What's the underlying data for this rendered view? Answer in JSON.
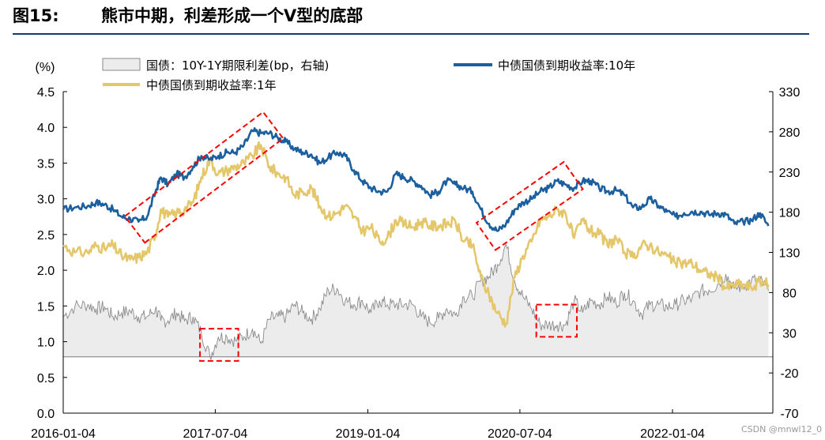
{
  "figure": {
    "label": "图15:",
    "title": "熊市中期，利差形成一个V型的底部"
  },
  "watermark": "CSDN @mnwl12_0",
  "colors": {
    "ten_year": "#1b5f9e",
    "one_year": "#e5c76b",
    "spread_fill": "#ececec",
    "spread_line": "#8a8a8a",
    "highlight": "#ff0000",
    "title_rule": "#1a3a6b"
  },
  "chart_data": {
    "type": "line",
    "y_left": {
      "label": "(%)",
      "range": [
        0,
        4.5
      ],
      "ticks": [
        "0.0",
        "0.5",
        "1.0",
        "1.5",
        "2.0",
        "2.5",
        "3.0",
        "3.5",
        "4.0",
        "4.5"
      ]
    },
    "y_right": {
      "label": "",
      "range": [
        -70,
        330
      ],
      "ticks": [
        "-70",
        "-20",
        "30",
        "80",
        "130",
        "180",
        "230",
        "280",
        "330"
      ]
    },
    "x": {
      "range": [
        "2016-01-04",
        "2022-12-31"
      ],
      "ticks": [
        "2016-01-04",
        "2017-07-04",
        "2019-01-04",
        "2020-07-04",
        "2022-01-04"
      ]
    },
    "legend": {
      "placement": "top",
      "items": [
        {
          "name": "国债：10Y-1Y期限利差(bp，右轴)",
          "type": "area"
        },
        {
          "name": "中债国债到期收益率:10年",
          "type": "line"
        },
        {
          "name": "中债国债到期收益率:1年",
          "type": "line"
        }
      ]
    },
    "series": [
      {
        "name": "中债国债到期收益率:10年",
        "axis": "left",
        "points": [
          [
            "2016-01-04",
            2.85
          ],
          [
            "2016-02-15",
            2.88
          ],
          [
            "2016-04-01",
            2.9
          ],
          [
            "2016-05-01",
            2.95
          ],
          [
            "2016-06-01",
            2.92
          ],
          [
            "2016-07-01",
            2.85
          ],
          [
            "2016-08-01",
            2.75
          ],
          [
            "2016-09-01",
            2.72
          ],
          [
            "2016-10-01",
            2.68
          ],
          [
            "2016-11-01",
            2.75
          ],
          [
            "2016-12-01",
            3.1
          ],
          [
            "2016-12-20",
            3.3
          ],
          [
            "2017-01-15",
            3.2
          ],
          [
            "2017-02-15",
            3.35
          ],
          [
            "2017-03-15",
            3.3
          ],
          [
            "2017-04-15",
            3.45
          ],
          [
            "2017-05-15",
            3.6
          ],
          [
            "2017-06-15",
            3.55
          ],
          [
            "2017-07-15",
            3.6
          ],
          [
            "2017-08-15",
            3.65
          ],
          [
            "2017-09-15",
            3.65
          ],
          [
            "2017-10-15",
            3.75
          ],
          [
            "2017-11-15",
            3.95
          ],
          [
            "2017-12-15",
            3.92
          ],
          [
            "2018-01-15",
            3.92
          ],
          [
            "2018-02-15",
            3.85
          ],
          [
            "2018-03-15",
            3.8
          ],
          [
            "2018-04-15",
            3.7
          ],
          [
            "2018-05-15",
            3.65
          ],
          [
            "2018-06-15",
            3.62
          ],
          [
            "2018-07-15",
            3.5
          ],
          [
            "2018-08-15",
            3.58
          ],
          [
            "2018-09-15",
            3.65
          ],
          [
            "2018-10-15",
            3.6
          ],
          [
            "2018-11-15",
            3.4
          ],
          [
            "2018-12-15",
            3.25
          ],
          [
            "2019-01-15",
            3.15
          ],
          [
            "2019-02-15",
            3.1
          ],
          [
            "2019-03-15",
            3.1
          ],
          [
            "2019-04-15",
            3.35
          ],
          [
            "2019-05-15",
            3.3
          ],
          [
            "2019-06-15",
            3.25
          ],
          [
            "2019-07-15",
            3.18
          ],
          [
            "2019-08-15",
            3.05
          ],
          [
            "2019-09-15",
            3.1
          ],
          [
            "2019-10-15",
            3.25
          ],
          [
            "2019-11-15",
            3.2
          ],
          [
            "2019-12-15",
            3.15
          ],
          [
            "2020-01-15",
            3.1
          ],
          [
            "2020-02-15",
            2.85
          ],
          [
            "2020-03-15",
            2.65
          ],
          [
            "2020-04-15",
            2.55
          ],
          [
            "2020-05-15",
            2.65
          ],
          [
            "2020-06-15",
            2.85
          ],
          [
            "2020-07-15",
            2.95
          ],
          [
            "2020-08-15",
            3.0
          ],
          [
            "2020-09-15",
            3.1
          ],
          [
            "2020-10-15",
            3.15
          ],
          [
            "2020-11-15",
            3.25
          ],
          [
            "2020-12-15",
            3.2
          ],
          [
            "2021-01-15",
            3.15
          ],
          [
            "2021-02-15",
            3.25
          ],
          [
            "2021-03-15",
            3.25
          ],
          [
            "2021-04-15",
            3.15
          ],
          [
            "2021-05-15",
            3.1
          ],
          [
            "2021-06-15",
            3.12
          ],
          [
            "2021-07-15",
            3.05
          ],
          [
            "2021-08-15",
            2.88
          ],
          [
            "2021-09-15",
            2.88
          ],
          [
            "2021-10-15",
            3.0
          ],
          [
            "2021-11-15",
            2.9
          ],
          [
            "2021-12-15",
            2.82
          ],
          [
            "2022-01-15",
            2.75
          ],
          [
            "2022-02-15",
            2.8
          ],
          [
            "2022-03-15",
            2.82
          ],
          [
            "2022-04-15",
            2.82
          ],
          [
            "2022-05-15",
            2.78
          ],
          [
            "2022-06-15",
            2.8
          ],
          [
            "2022-07-15",
            2.78
          ],
          [
            "2022-08-15",
            2.65
          ],
          [
            "2022-09-15",
            2.68
          ],
          [
            "2022-10-15",
            2.7
          ],
          [
            "2022-11-15",
            2.8
          ],
          [
            "2022-12-15",
            2.62
          ]
        ]
      },
      {
        "name": "中债国债到期收益率:1年",
        "axis": "left",
        "points": [
          [
            "2016-01-04",
            2.35
          ],
          [
            "2016-02-15",
            2.25
          ],
          [
            "2016-04-01",
            2.25
          ],
          [
            "2016-05-01",
            2.35
          ],
          [
            "2016-06-01",
            2.3
          ],
          [
            "2016-07-01",
            2.35
          ],
          [
            "2016-08-01",
            2.2
          ],
          [
            "2016-09-01",
            2.15
          ],
          [
            "2016-10-01",
            2.18
          ],
          [
            "2016-11-01",
            2.25
          ],
          [
            "2016-12-01",
            2.5
          ],
          [
            "2016-12-20",
            2.85
          ],
          [
            "2017-01-15",
            2.75
          ],
          [
            "2017-02-15",
            2.8
          ],
          [
            "2017-03-15",
            2.85
          ],
          [
            "2017-04-15",
            2.95
          ],
          [
            "2017-05-15",
            3.3
          ],
          [
            "2017-06-15",
            3.55
          ],
          [
            "2017-07-15",
            3.35
          ],
          [
            "2017-08-15",
            3.4
          ],
          [
            "2017-09-15",
            3.45
          ],
          [
            "2017-10-15",
            3.5
          ],
          [
            "2017-11-15",
            3.6
          ],
          [
            "2017-12-15",
            3.75
          ],
          [
            "2018-01-15",
            3.45
          ],
          [
            "2018-02-15",
            3.35
          ],
          [
            "2018-03-15",
            3.3
          ],
          [
            "2018-04-15",
            3.05
          ],
          [
            "2018-05-15",
            3.1
          ],
          [
            "2018-06-15",
            3.15
          ],
          [
            "2018-07-15",
            2.9
          ],
          [
            "2018-08-15",
            2.75
          ],
          [
            "2018-09-15",
            2.8
          ],
          [
            "2018-10-15",
            2.9
          ],
          [
            "2018-11-15",
            2.75
          ],
          [
            "2018-12-15",
            2.55
          ],
          [
            "2019-01-15",
            2.6
          ],
          [
            "2019-02-15",
            2.4
          ],
          [
            "2019-03-15",
            2.45
          ],
          [
            "2019-04-15",
            2.7
          ],
          [
            "2019-05-15",
            2.65
          ],
          [
            "2019-06-15",
            2.6
          ],
          [
            "2019-07-15",
            2.68
          ],
          [
            "2019-08-15",
            2.62
          ],
          [
            "2019-09-15",
            2.62
          ],
          [
            "2019-10-15",
            2.65
          ],
          [
            "2019-11-15",
            2.68
          ],
          [
            "2019-12-15",
            2.4
          ],
          [
            "2020-01-15",
            2.35
          ],
          [
            "2020-02-15",
            1.9
          ],
          [
            "2020-03-15",
            1.65
          ],
          [
            "2020-04-15",
            1.4
          ],
          [
            "2020-05-15",
            1.25
          ],
          [
            "2020-06-15",
            1.9
          ],
          [
            "2020-07-15",
            2.2
          ],
          [
            "2020-08-15",
            2.4
          ],
          [
            "2020-09-15",
            2.7
          ],
          [
            "2020-10-15",
            2.75
          ],
          [
            "2020-11-15",
            2.85
          ],
          [
            "2020-12-15",
            2.8
          ],
          [
            "2021-01-15",
            2.45
          ],
          [
            "2021-02-15",
            2.7
          ],
          [
            "2021-03-15",
            2.55
          ],
          [
            "2021-04-15",
            2.5
          ],
          [
            "2021-05-15",
            2.35
          ],
          [
            "2021-06-15",
            2.45
          ],
          [
            "2021-07-15",
            2.25
          ],
          [
            "2021-08-15",
            2.18
          ],
          [
            "2021-09-15",
            2.35
          ],
          [
            "2021-10-15",
            2.35
          ],
          [
            "2021-11-15",
            2.25
          ],
          [
            "2021-12-15",
            2.2
          ],
          [
            "2022-01-15",
            2.1
          ],
          [
            "2022-02-15",
            2.1
          ],
          [
            "2022-03-15",
            2.1
          ],
          [
            "2022-04-15",
            2.0
          ],
          [
            "2022-05-15",
            1.95
          ],
          [
            "2022-06-15",
            1.9
          ],
          [
            "2022-07-15",
            1.75
          ],
          [
            "2022-08-15",
            1.8
          ],
          [
            "2022-09-15",
            1.8
          ],
          [
            "2022-10-15",
            1.75
          ],
          [
            "2022-11-15",
            1.85
          ],
          [
            "2022-12-15",
            1.8
          ]
        ]
      },
      {
        "name": "国债：10Y-1Y期限利差(bp，右轴)",
        "axis": "right",
        "points": [
          [
            "2016-01-04",
            50
          ],
          [
            "2016-02-15",
            63
          ],
          [
            "2016-04-01",
            65
          ],
          [
            "2016-05-01",
            60
          ],
          [
            "2016-06-01",
            62
          ],
          [
            "2016-07-01",
            50
          ],
          [
            "2016-08-01",
            55
          ],
          [
            "2016-09-01",
            57
          ],
          [
            "2016-10-01",
            50
          ],
          [
            "2016-11-01",
            50
          ],
          [
            "2016-12-01",
            60
          ],
          [
            "2016-12-20",
            45
          ],
          [
            "2017-01-15",
            45
          ],
          [
            "2017-02-15",
            55
          ],
          [
            "2017-03-15",
            45
          ],
          [
            "2017-04-15",
            50
          ],
          [
            "2017-05-15",
            30
          ],
          [
            "2017-06-15",
            0
          ],
          [
            "2017-07-15",
            25
          ],
          [
            "2017-08-15",
            25
          ],
          [
            "2017-09-15",
            20
          ],
          [
            "2017-10-15",
            25
          ],
          [
            "2017-11-15",
            35
          ],
          [
            "2017-12-15",
            17
          ],
          [
            "2018-01-15",
            47
          ],
          [
            "2018-02-15",
            50
          ],
          [
            "2018-03-15",
            50
          ],
          [
            "2018-04-15",
            65
          ],
          [
            "2018-05-15",
            55
          ],
          [
            "2018-06-15",
            47
          ],
          [
            "2018-07-15",
            60
          ],
          [
            "2018-08-15",
            83
          ],
          [
            "2018-09-15",
            85
          ],
          [
            "2018-10-15",
            70
          ],
          [
            "2018-11-15",
            65
          ],
          [
            "2018-12-15",
            70
          ],
          [
            "2019-01-15",
            55
          ],
          [
            "2019-02-15",
            70
          ],
          [
            "2019-03-15",
            65
          ],
          [
            "2019-04-15",
            65
          ],
          [
            "2019-05-15",
            65
          ],
          [
            "2019-06-15",
            65
          ],
          [
            "2019-07-15",
            50
          ],
          [
            "2019-08-15",
            43
          ],
          [
            "2019-09-15",
            48
          ],
          [
            "2019-10-15",
            60
          ],
          [
            "2019-11-15",
            52
          ],
          [
            "2019-12-15",
            75
          ],
          [
            "2020-01-15",
            75
          ],
          [
            "2020-02-15",
            95
          ],
          [
            "2020-03-15",
            100
          ],
          [
            "2020-04-15",
            115
          ],
          [
            "2020-05-15",
            140
          ],
          [
            "2020-06-15",
            95
          ],
          [
            "2020-07-15",
            75
          ],
          [
            "2020-08-15",
            60
          ],
          [
            "2020-09-15",
            40
          ],
          [
            "2020-10-15",
            40
          ],
          [
            "2020-11-15",
            40
          ],
          [
            "2020-12-15",
            40
          ],
          [
            "2021-01-15",
            70
          ],
          [
            "2021-02-15",
            55
          ],
          [
            "2021-03-15",
            70
          ],
          [
            "2021-04-15",
            65
          ],
          [
            "2021-05-15",
            75
          ],
          [
            "2021-06-15",
            67
          ],
          [
            "2021-07-15",
            80
          ],
          [
            "2021-08-15",
            70
          ],
          [
            "2021-09-15",
            53
          ],
          [
            "2021-10-15",
            65
          ],
          [
            "2021-11-15",
            65
          ],
          [
            "2021-12-15",
            62
          ],
          [
            "2022-01-15",
            65
          ],
          [
            "2022-02-15",
            70
          ],
          [
            "2022-03-15",
            72
          ],
          [
            "2022-04-15",
            82
          ],
          [
            "2022-05-15",
            83
          ],
          [
            "2022-06-15",
            90
          ],
          [
            "2022-07-15",
            103
          ],
          [
            "2022-08-15",
            85
          ],
          [
            "2022-09-15",
            88
          ],
          [
            "2022-10-15",
            95
          ],
          [
            "2022-11-15",
            95
          ],
          [
            "2022-12-15",
            82
          ]
        ]
      }
    ],
    "annotations": [
      {
        "type": "rotated-dashed-box",
        "from": [
          "2016-10-15",
          2.65
        ],
        "to": [
          "2018-01-01",
          3.95
        ]
      },
      {
        "type": "rotated-dashed-box",
        "from": [
          "2020-04-01",
          2.55
        ],
        "to": [
          "2020-12-15",
          3.25
        ]
      },
      {
        "type": "dashed-box",
        "x": [
          "2017-05-10",
          "2017-09-25"
        ],
        "y_right": [
          -5,
          35
        ]
      },
      {
        "type": "dashed-box",
        "x": [
          "2020-09-01",
          "2021-01-25"
        ],
        "y_right": [
          25,
          65
        ]
      }
    ]
  }
}
